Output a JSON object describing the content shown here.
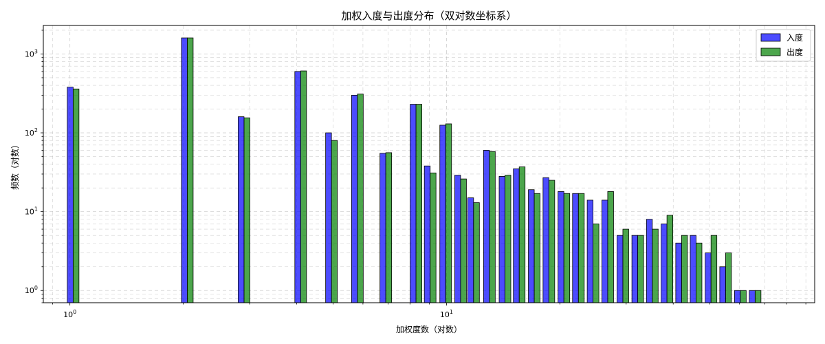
{
  "chart_data": {
    "type": "bar",
    "title": "加权入度与出度分布（双对数坐标系）",
    "xlabel": "加权度数（对数）",
    "ylabel": "频数（对数）",
    "xscale": "log",
    "yscale": "log",
    "xlim": [
      0.85,
      95
    ],
    "ylim": [
      0.7,
      2300
    ],
    "grid": true,
    "legend_position": "top-right",
    "x_ticks": [
      {
        "value": 1,
        "base": "10",
        "exp": "0"
      },
      {
        "value": 10,
        "base": "10",
        "exp": "1"
      }
    ],
    "y_ticks": [
      {
        "value": 1,
        "base": "10",
        "exp": "0"
      },
      {
        "value": 10,
        "base": "10",
        "exp": "1"
      },
      {
        "value": 100,
        "base": "10",
        "exp": "2"
      },
      {
        "value": 1000,
        "base": "10",
        "exp": "3"
      }
    ],
    "series": [
      {
        "name": "入度",
        "color": "#0000ff",
        "points": [
          [
            1.02,
            380
          ],
          [
            2.05,
            1600
          ],
          [
            2.9,
            160
          ],
          [
            4.1,
            600
          ],
          [
            4.95,
            100
          ],
          [
            5.8,
            300
          ],
          [
            6.9,
            55
          ],
          [
            8.3,
            230
          ],
          [
            9.05,
            38
          ],
          [
            9.95,
            125
          ],
          [
            10.9,
            29
          ],
          [
            11.8,
            15
          ],
          [
            13.0,
            60
          ],
          [
            14.3,
            28
          ],
          [
            15.6,
            35
          ],
          [
            17.1,
            19
          ],
          [
            18.7,
            27
          ],
          [
            20.5,
            18
          ],
          [
            22.4,
            17
          ],
          [
            24.5,
            14
          ],
          [
            26.8,
            14
          ],
          [
            29.4,
            5
          ],
          [
            32.2,
            5
          ],
          [
            35.2,
            8
          ],
          [
            38.5,
            7
          ],
          [
            42.1,
            4
          ],
          [
            46.0,
            5
          ],
          [
            50.4,
            3
          ],
          [
            55.1,
            2
          ],
          [
            60.3,
            1
          ],
          [
            66.0,
            1
          ]
        ]
      },
      {
        "name": "出度",
        "color": "#008000",
        "points": [
          [
            1.02,
            360
          ],
          [
            2.05,
            1600
          ],
          [
            2.9,
            155
          ],
          [
            4.1,
            610
          ],
          [
            4.95,
            80
          ],
          [
            5.8,
            310
          ],
          [
            6.9,
            56
          ],
          [
            8.3,
            230
          ],
          [
            9.05,
            31
          ],
          [
            9.95,
            130
          ],
          [
            10.9,
            26
          ],
          [
            11.8,
            13
          ],
          [
            13.0,
            58
          ],
          [
            14.3,
            29
          ],
          [
            15.6,
            37
          ],
          [
            17.1,
            17
          ],
          [
            18.7,
            25
          ],
          [
            20.5,
            17
          ],
          [
            22.4,
            17
          ],
          [
            24.5,
            7
          ],
          [
            26.8,
            18
          ],
          [
            29.4,
            6
          ],
          [
            32.2,
            5
          ],
          [
            35.2,
            6
          ],
          [
            38.5,
            9
          ],
          [
            42.1,
            5
          ],
          [
            46.0,
            4
          ],
          [
            50.4,
            5
          ],
          [
            55.1,
            3
          ],
          [
            60.3,
            1
          ],
          [
            66.0,
            1
          ]
        ]
      }
    ]
  }
}
